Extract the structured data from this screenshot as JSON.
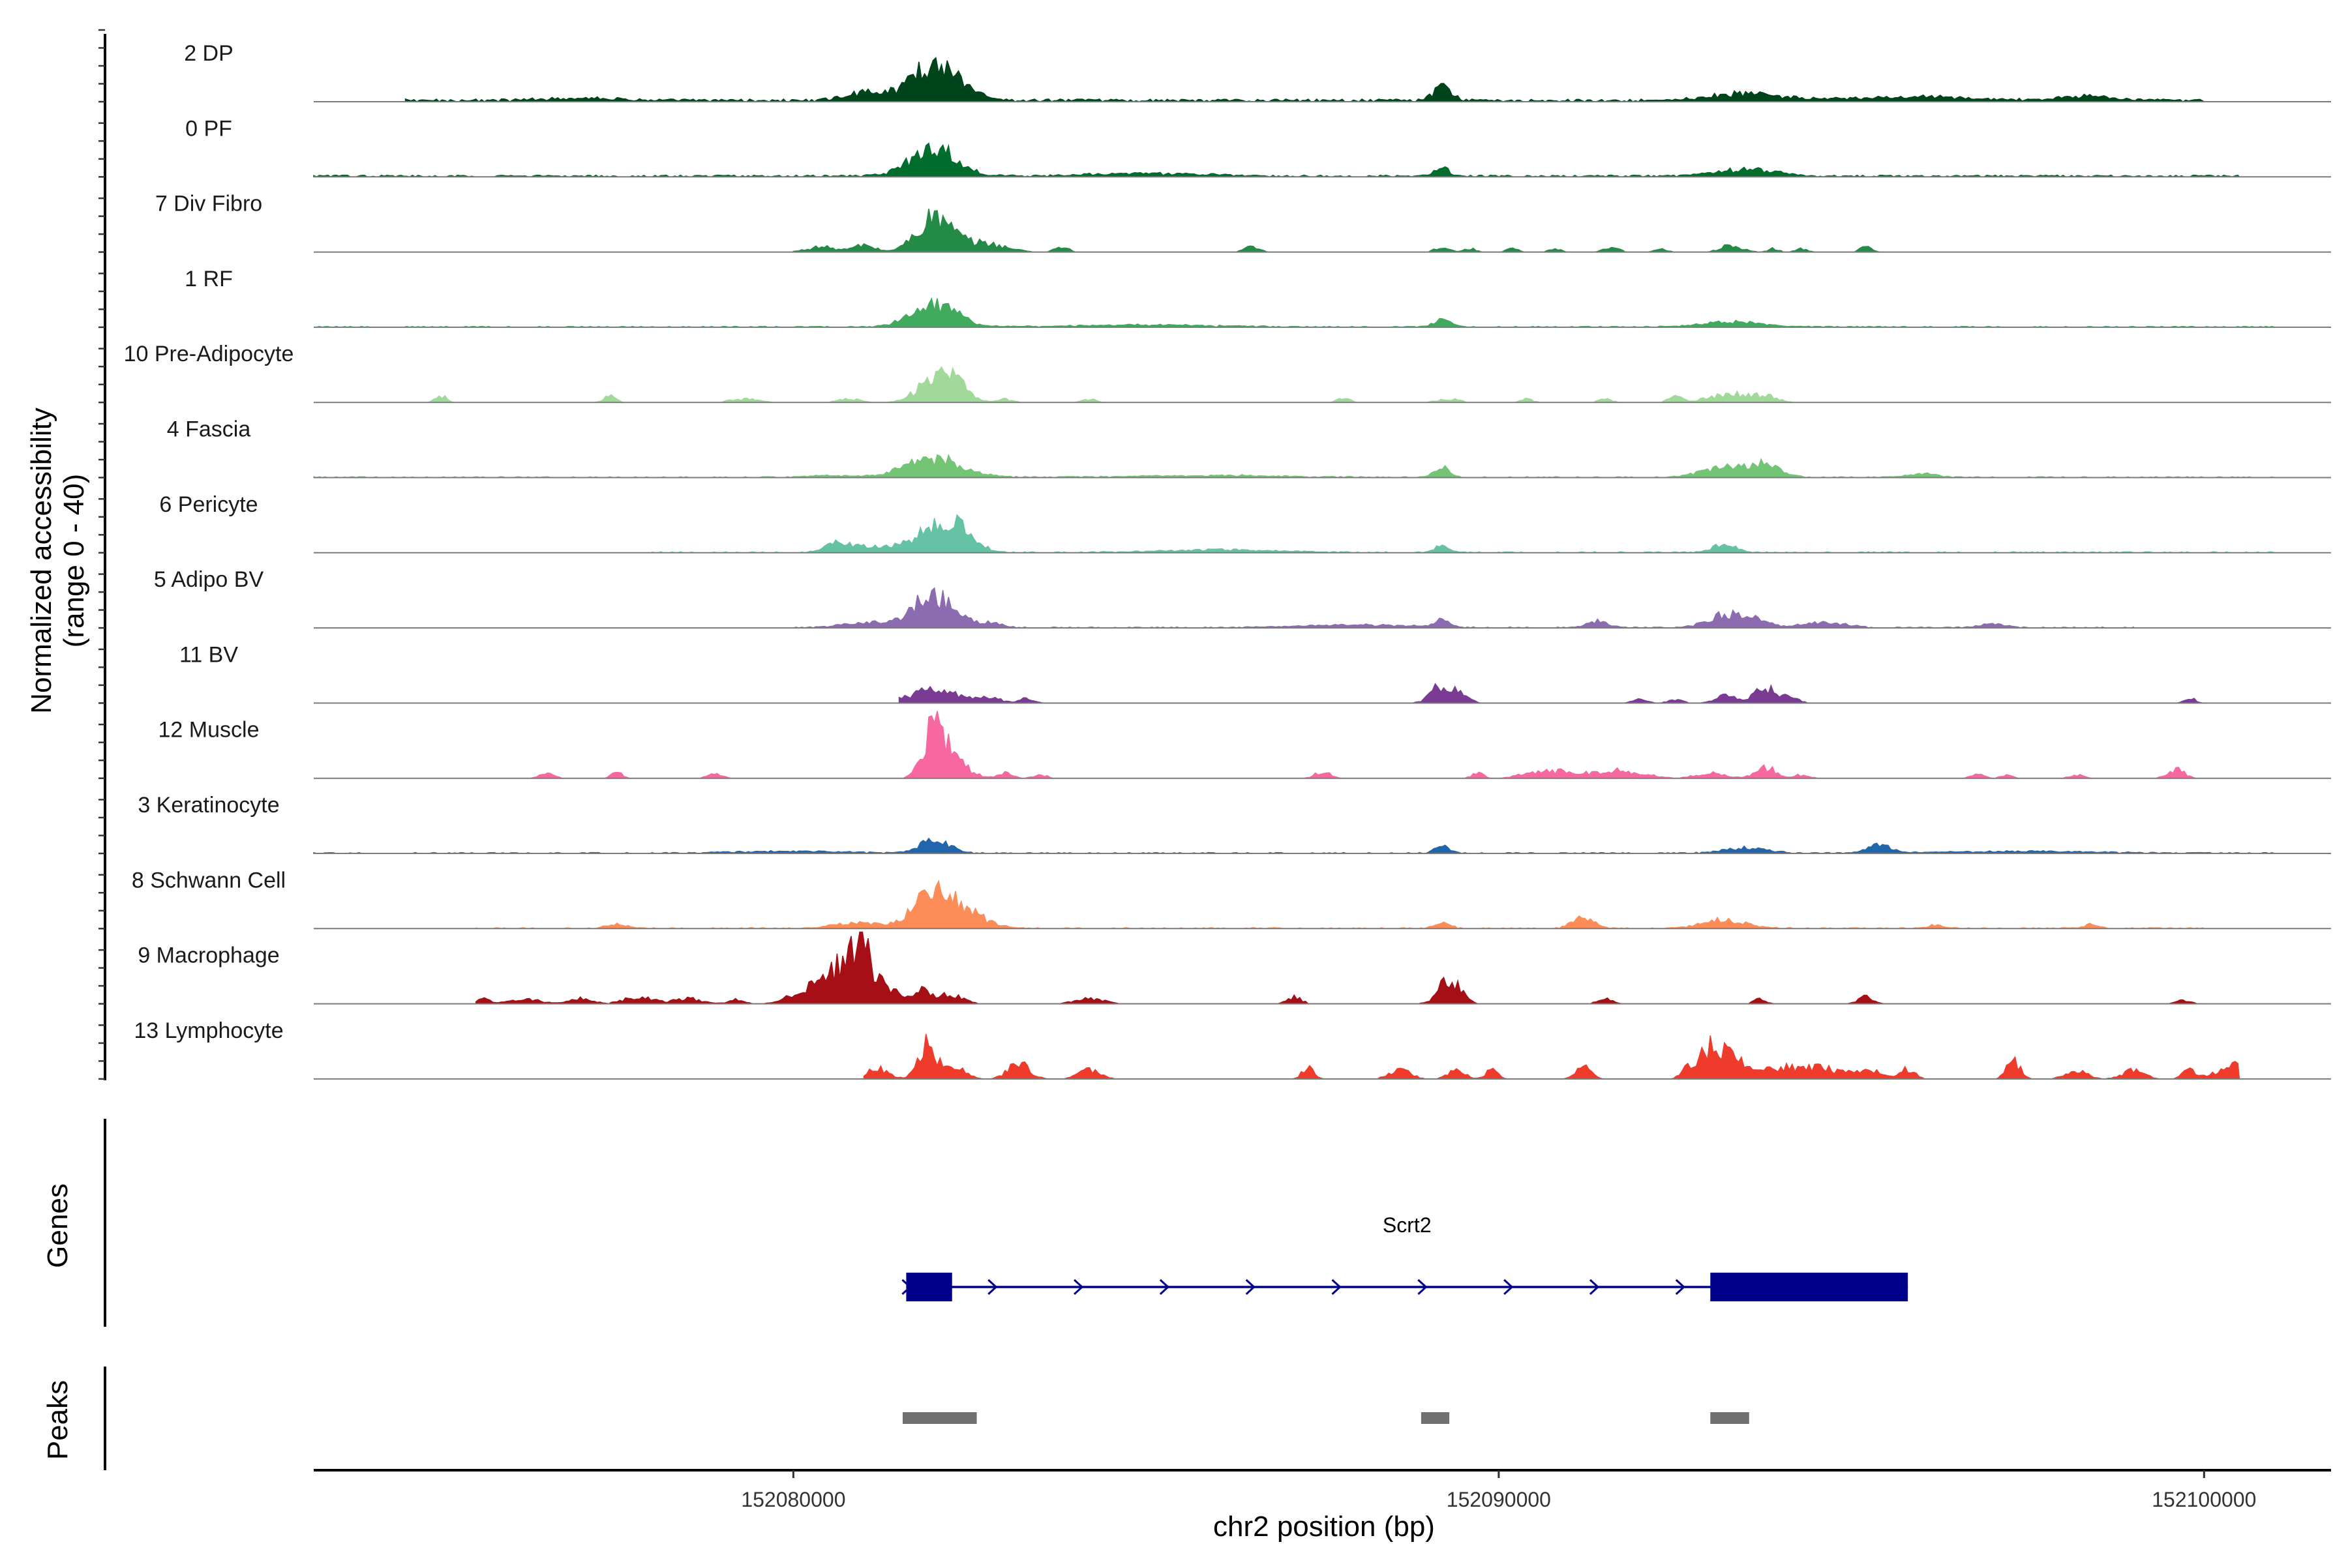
{
  "chart_data": {
    "type": "area",
    "title": "",
    "chromosome": "chr2",
    "xlabel": "chr2 position (bp)",
    "ylabel": "Normalized accessibility",
    "ylabel_range": "(range 0 - 40)",
    "ylim": [
      0,
      40
    ],
    "xlim": [
      152073200,
      152101800
    ],
    "x_ticks": [
      152080000,
      152090000,
      152100000
    ],
    "x_tick_labels": [
      "152080000",
      "152090000",
      "152100000"
    ],
    "tracks": [
      {
        "name": "2 DP",
        "color": "#00441b",
        "baseline": 1.5,
        "span": [
          152074500,
          152100000
        ],
        "peaks": [
          [
            152081900,
            18,
            300
          ],
          [
            152082300,
            9,
            250
          ],
          [
            152081000,
            5,
            250
          ],
          [
            152089200,
            8,
            120
          ],
          [
            152093500,
            4,
            500
          ],
          [
            152098300,
            3,
            300
          ],
          [
            152077000,
            1.5,
            500
          ],
          [
            152096000,
            2,
            800
          ]
        ]
      },
      {
        "name": "0 PF",
        "color": "#006d2c",
        "baseline": 1,
        "span": [
          152073200,
          152100500
        ],
        "peaks": [
          [
            152082000,
            17,
            320
          ],
          [
            152089200,
            5,
            100
          ],
          [
            152093500,
            4,
            400
          ],
          [
            152085000,
            1.5,
            800
          ]
        ]
      },
      {
        "name": "7 Div Fibro",
        "color": "#238b45",
        "baseline": 0,
        "span": [
          152080000,
          152095400
        ],
        "peaks": [
          [
            152082000,
            20,
            250
          ],
          [
            152082700,
            5,
            300
          ],
          [
            152081000,
            4,
            150
          ],
          [
            152080400,
            3,
            200
          ],
          [
            152083800,
            3,
            100
          ],
          [
            152086500,
            3,
            100
          ],
          [
            152089200,
            3,
            100
          ],
          [
            152089600,
            2,
            80
          ],
          [
            152090200,
            2,
            80
          ],
          [
            152090800,
            2,
            80
          ],
          [
            152091600,
            3,
            100
          ],
          [
            152092300,
            2,
            80
          ],
          [
            152093300,
            4,
            150
          ],
          [
            152093900,
            2,
            80
          ],
          [
            152094300,
            2,
            80
          ],
          [
            152095200,
            3,
            80
          ]
        ]
      },
      {
        "name": "1 RF",
        "color": "#41ab5d",
        "baseline": 0.5,
        "span": [
          152073200,
          152101000
        ],
        "peaks": [
          [
            152082000,
            13,
            320
          ],
          [
            152089200,
            4,
            120
          ],
          [
            152093300,
            3,
            400
          ],
          [
            152085000,
            1,
            1000
          ]
        ]
      },
      {
        "name": "10 Pre-Adipocyte",
        "color": "#a1d99b",
        "baseline": 0,
        "span": [
          152074500,
          152100000
        ],
        "peaks": [
          [
            152082000,
            12,
            250
          ],
          [
            152082300,
            8,
            200
          ],
          [
            152075000,
            4,
            80
          ],
          [
            152077400,
            4,
            80
          ],
          [
            152079300,
            2,
            200
          ],
          [
            152080800,
            2,
            150
          ],
          [
            152083000,
            2,
            100
          ],
          [
            152084200,
            2,
            100
          ],
          [
            152087800,
            3,
            80
          ],
          [
            152089300,
            2,
            150
          ],
          [
            152090400,
            2,
            80
          ],
          [
            152091500,
            2,
            100
          ],
          [
            152092500,
            3,
            100
          ],
          [
            152093300,
            5,
            300
          ],
          [
            152093800,
            3,
            150
          ]
        ]
      },
      {
        "name": "4 Fascia",
        "color": "#74c476",
        "baseline": 0.5,
        "span": [
          152073200,
          152101000
        ],
        "peaks": [
          [
            152082000,
            11,
            400
          ],
          [
            152089200,
            7,
            100
          ],
          [
            152093200,
            6,
            300
          ],
          [
            152093800,
            7,
            200
          ],
          [
            152096000,
            2,
            200
          ],
          [
            152080500,
            1,
            300
          ],
          [
            152086000,
            1,
            1000
          ]
        ]
      },
      {
        "name": "6 Pericyte",
        "color": "#66c2a4",
        "baseline": 0.5,
        "span": [
          152078000,
          152101000
        ],
        "peaks": [
          [
            152082000,
            14,
            300
          ],
          [
            152082400,
            10,
            200
          ],
          [
            152081000,
            4,
            300
          ],
          [
            152080600,
            4,
            150
          ],
          [
            152089200,
            4,
            100
          ],
          [
            152093200,
            5,
            150
          ],
          [
            152086000,
            1.5,
            800
          ]
        ]
      },
      {
        "name": "5 Adipo BV",
        "color": "#8c6bb1",
        "baseline": 0.5,
        "span": [
          152080000,
          152099000
        ],
        "peaks": [
          [
            152081900,
            18,
            250
          ],
          [
            152082300,
            6,
            200
          ],
          [
            152081000,
            3,
            300
          ],
          [
            152082800,
            3,
            150
          ],
          [
            152089200,
            4,
            100
          ],
          [
            152088000,
            1.5,
            800
          ],
          [
            152091400,
            4,
            150
          ],
          [
            152093200,
            7,
            250
          ],
          [
            152093600,
            5,
            200
          ],
          [
            152094600,
            3,
            300
          ],
          [
            152097000,
            2,
            200
          ],
          [
            152099800,
            3,
            80
          ]
        ]
      },
      {
        "name": "11 BV",
        "color": "#7a3b93",
        "baseline": 0,
        "span": [
          152081500,
          152100000
        ],
        "peaks": [
          [
            152081800,
            5,
            250
          ],
          [
            152082200,
            5,
            250
          ],
          [
            152082800,
            3,
            150
          ],
          [
            152083300,
            3,
            100
          ],
          [
            152089200,
            11,
            150
          ],
          [
            152089500,
            4,
            100
          ],
          [
            152092000,
            2,
            100
          ],
          [
            152092500,
            2,
            100
          ],
          [
            152093200,
            4,
            150
          ],
          [
            152093800,
            8,
            200
          ],
          [
            152094200,
            2,
            80
          ],
          [
            152099800,
            3,
            80
          ]
        ]
      },
      {
        "name": "12 Muscle",
        "color": "#f768a1",
        "baseline": 0,
        "span": [
          152076000,
          152100000
        ],
        "peaks": [
          [
            152082000,
            30,
            150
          ],
          [
            152082300,
            9,
            200
          ],
          [
            152076500,
            3,
            100
          ],
          [
            152077500,
            3,
            80
          ],
          [
            152078900,
            3,
            100
          ],
          [
            152083000,
            3,
            100
          ],
          [
            152083500,
            2,
            100
          ],
          [
            152087500,
            4,
            100
          ],
          [
            152089700,
            3,
            80
          ],
          [
            152090500,
            3,
            200
          ],
          [
            152091000,
            4,
            300
          ],
          [
            152091600,
            4,
            150
          ],
          [
            152092000,
            3,
            200
          ],
          [
            152093000,
            3,
            200
          ],
          [
            152093800,
            6,
            150
          ],
          [
            152094300,
            2,
            100
          ],
          [
            152096800,
            2,
            100
          ],
          [
            152097200,
            2,
            80
          ],
          [
            152098200,
            2,
            100
          ],
          [
            152099600,
            5,
            120
          ]
        ]
      },
      {
        "name": "3 Keratinocyte",
        "color": "#2166ac",
        "baseline": 0.5,
        "span": [
          152073200,
          152101000
        ],
        "peaks": [
          [
            152082000,
            8,
            200
          ],
          [
            152089200,
            4,
            100
          ],
          [
            152093500,
            3,
            300
          ],
          [
            152095400,
            5,
            150
          ],
          [
            152080000,
            1,
            800
          ],
          [
            152097500,
            1,
            1000
          ]
        ]
      },
      {
        "name": "8 Schwann Cell",
        "color": "#fc8d59",
        "baseline": 0.5,
        "span": [
          152075500,
          152100000
        ],
        "peaks": [
          [
            152082000,
            19,
            300
          ],
          [
            152082400,
            8,
            300
          ],
          [
            152081000,
            3,
            200
          ],
          [
            152080600,
            2,
            150
          ],
          [
            152089200,
            4,
            100
          ],
          [
            152091200,
            6,
            150
          ],
          [
            152093200,
            5,
            300
          ],
          [
            152096200,
            2,
            100
          ],
          [
            152098400,
            2,
            100
          ],
          [
            152077500,
            2,
            150
          ]
        ]
      },
      {
        "name": "9 Macrophage",
        "color": "#a50f15",
        "baseline": 0,
        "span": [
          152075500,
          152100000
        ],
        "peaks": [
          [
            152080900,
            35,
            180
          ],
          [
            152080500,
            14,
            200
          ],
          [
            152081300,
            10,
            200
          ],
          [
            152080100,
            6,
            200
          ],
          [
            152081800,
            7,
            150
          ],
          [
            152082200,
            5,
            200
          ],
          [
            152075600,
            3,
            100
          ],
          [
            152076200,
            3,
            200
          ],
          [
            152077000,
            3,
            150
          ],
          [
            152077800,
            4,
            200
          ],
          [
            152078500,
            3,
            200
          ],
          [
            152079200,
            3,
            100
          ],
          [
            152084200,
            3,
            200
          ],
          [
            152087100,
            4,
            100
          ],
          [
            152089300,
            14,
            150
          ],
          [
            152091500,
            3,
            100
          ],
          [
            152093700,
            3,
            80
          ],
          [
            152095200,
            4,
            100
          ],
          [
            152099700,
            2,
            100
          ]
        ]
      },
      {
        "name": "13 Lymphocyte",
        "color": "#ef3b2c",
        "baseline": 0,
        "span": [
          152081000,
          152100500
        ],
        "peaks": [
          [
            152081900,
            22,
            120
          ],
          [
            152081200,
            6,
            150
          ],
          [
            152082300,
            6,
            150
          ],
          [
            152083200,
            9,
            150
          ],
          [
            152084200,
            5,
            150
          ],
          [
            152087300,
            8,
            80
          ],
          [
            152088600,
            5,
            150
          ],
          [
            152089400,
            5,
            120
          ],
          [
            152089900,
            5,
            80
          ],
          [
            152091200,
            7,
            100
          ],
          [
            152092700,
            7,
            100
          ],
          [
            152093000,
            17,
            150
          ],
          [
            152093300,
            14,
            150
          ],
          [
            152094000,
            7,
            300
          ],
          [
            152094600,
            6,
            200
          ],
          [
            152095200,
            6,
            200
          ],
          [
            152095800,
            6,
            100
          ],
          [
            152097300,
            10,
            100
          ],
          [
            152098200,
            5,
            150
          ],
          [
            152099000,
            5,
            150
          ],
          [
            152099800,
            5,
            100
          ],
          [
            152100400,
            8,
            200
          ]
        ]
      }
    ],
    "genes_track_label": "Genes",
    "gene": {
      "name": "Scrt2",
      "strand": "+",
      "color": "#00008b",
      "start": 152081600,
      "end": 152095800,
      "exons": [
        [
          152081600,
          152082250
        ],
        [
          152093000,
          152095800
        ]
      ]
    },
    "peaks_track_label": "Peaks",
    "peak_color": "#707070",
    "peak_regions": [
      [
        152081550,
        152082600
      ],
      [
        152088900,
        152089300
      ],
      [
        152093000,
        152093550
      ]
    ]
  }
}
